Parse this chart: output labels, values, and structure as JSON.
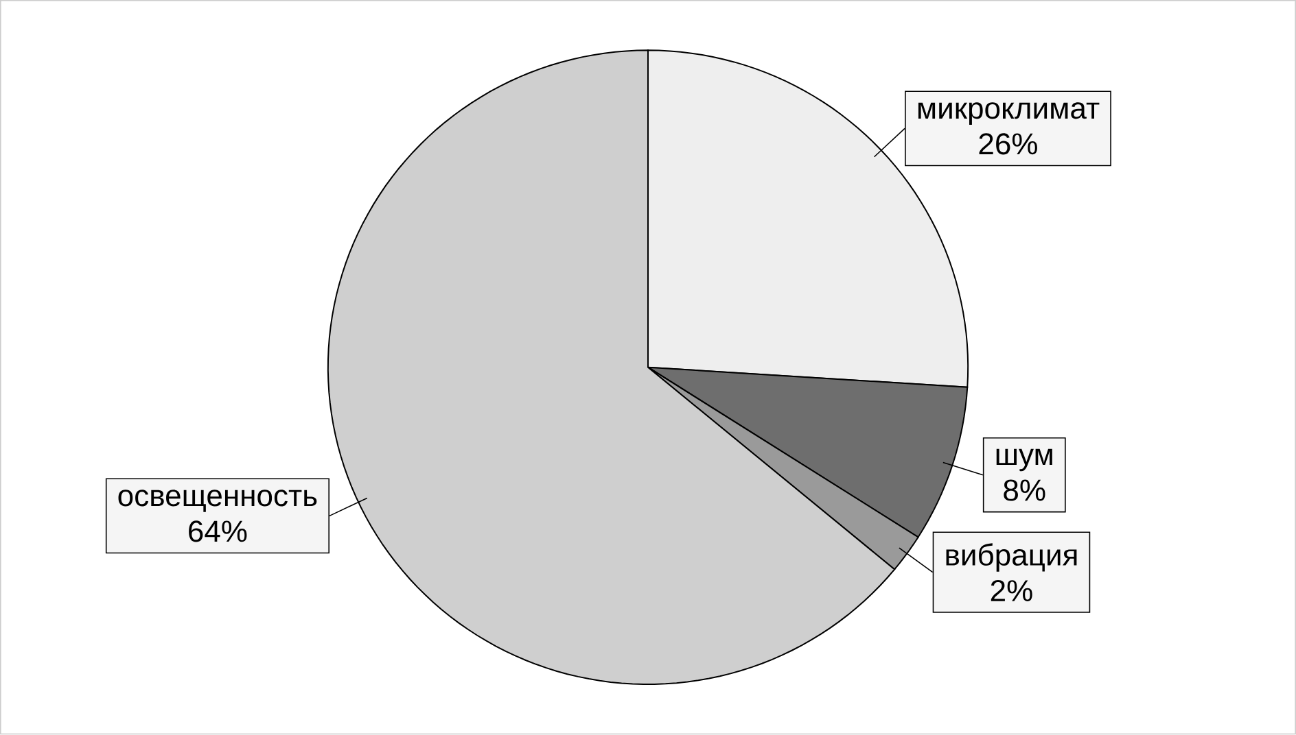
{
  "chart_data": {
    "type": "pie",
    "categories": [
      "микроклимат",
      "шум",
      "вибрация",
      "освещенность"
    ],
    "values": [
      26,
      8,
      2,
      64
    ],
    "value_labels": [
      "26%",
      "8%",
      "2%",
      "64%"
    ],
    "colors": [
      "#eeeeee",
      "#6e6e6e",
      "#9a9a9a",
      "#cfcfcf"
    ],
    "legend": false
  }
}
